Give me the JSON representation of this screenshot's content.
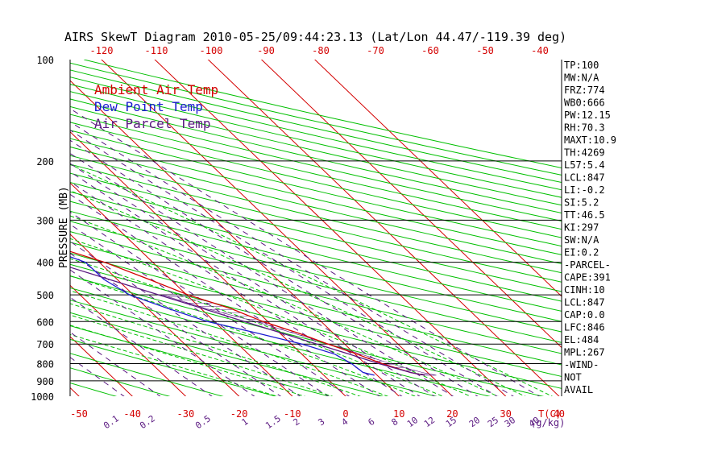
{
  "title": "AIRS SkewT Diagram 2010-05-25/09:44:23.13 (Lat/Lon 44.47/-119.39 deg)",
  "legend": [
    {
      "label": "Ambient Air Temp",
      "color": "#d40000"
    },
    {
      "label": "Dew Point Temp",
      "color": "#1c1cd0"
    },
    {
      "label": "Air Parcel Temp",
      "color": "#5a1880"
    }
  ],
  "indices": [
    "TP:100",
    "MW:N/A",
    "FRZ:774",
    "WB0:666",
    "PW:12.15",
    "RH:70.3",
    "MAXT:10.9",
    "TH:4269",
    "L57:5.4",
    "LCL:847",
    "LI:-0.2",
    "SI:5.2",
    "TT:46.5",
    "KI:297",
    "SW:N/A",
    "EI:0.2",
    "-PARCEL-",
    "CAPE:391",
    "CINH:10",
    "LCL:847",
    "CAP:0.0",
    "LFC:846",
    "EL:484",
    "MPL:267",
    "-WIND-",
    "NOT",
    "AVAIL"
  ],
  "chart_data": {
    "type": "line",
    "title": "AIRS SkewT Diagram 2010-05-25/09:44:23.13 (Lat/Lon 44.47/-119.39 deg)",
    "ylabel": "PRESSURE (MB)",
    "xlabel": "T(C)",
    "y_scale": "log",
    "ylim": [
      1000,
      100
    ],
    "pressure_ticks": [
      100,
      200,
      300,
      400,
      500,
      600,
      700,
      800,
      900,
      1000
    ],
    "bottom_temp_ticks": [
      -50,
      -40,
      -30,
      -20,
      -10,
      0,
      10,
      20,
      30,
      40
    ],
    "top_temp_ticks": [
      -120,
      -110,
      -100,
      -90,
      -80,
      -70,
      -60,
      -50,
      -40
    ],
    "mixing_ratio_labels": [
      "0.1",
      "0.2",
      "0.5",
      "1",
      "1.5",
      "2",
      "3",
      "4",
      "6",
      "8",
      "10",
      "12",
      "15",
      "20",
      "25",
      "30",
      "40"
    ],
    "mixing_ratio_unit": "(g/kg)",
    "mixing_ratio_values": [
      0.1,
      0.2,
      0.5,
      1,
      1.5,
      2,
      3,
      4,
      6,
      8,
      10,
      12,
      15,
      20,
      25,
      30,
      40
    ],
    "series": [
      {
        "name": "Ambient Air Temp",
        "color": "#d40000",
        "points": [
          [
            866,
            18.9
          ],
          [
            850,
            16.8
          ],
          [
            800,
            13.2
          ],
          [
            750,
            10.4
          ],
          [
            700,
            6.9
          ],
          [
            650,
            3.5
          ],
          [
            600,
            -0.9
          ],
          [
            550,
            -4.3
          ],
          [
            500,
            -9.7
          ],
          [
            450,
            -14.0
          ],
          [
            400,
            -19.0
          ],
          [
            350,
            -26.9
          ],
          [
            300,
            -38.6
          ],
          [
            250,
            -49.8
          ],
          [
            225,
            -53.8
          ],
          [
            200,
            -54.3
          ],
          [
            175,
            -56.4
          ],
          [
            150,
            -55.3
          ],
          [
            125,
            -58.8
          ],
          [
            100,
            -62.1
          ]
        ]
      },
      {
        "name": "Dew Point Temp",
        "color": "#1c1cd0",
        "points": [
          [
            866,
            9.5
          ],
          [
            850,
            7.9
          ],
          [
            800,
            7.5
          ],
          [
            750,
            6.2
          ],
          [
            700,
            2.0
          ],
          [
            650,
            -4.2
          ],
          [
            600,
            -11.3
          ],
          [
            550,
            -16.0
          ],
          [
            500,
            -20.7
          ],
          [
            450,
            -22.5
          ],
          [
            400,
            -22.6
          ],
          [
            350,
            -28.9
          ],
          [
            300,
            -39.4
          ],
          [
            250,
            -48.5
          ],
          [
            200,
            -59.5
          ],
          [
            150,
            -70.0
          ],
          [
            125,
            -78.0
          ],
          [
            100,
            -82.5
          ]
        ]
      },
      {
        "name": "Air Parcel Temp",
        "color": "#5a1880",
        "points": [
          [
            866,
            18.9
          ],
          [
            850,
            16.8
          ],
          [
            800,
            12.6
          ],
          [
            750,
            8.9
          ],
          [
            700,
            4.8
          ],
          [
            650,
            0.4
          ],
          [
            600,
            -4.4
          ],
          [
            550,
            -9.5
          ],
          [
            500,
            -15.2
          ],
          [
            450,
            -21.5
          ],
          [
            400,
            -28.5
          ],
          [
            350,
            -36.5
          ],
          [
            300,
            -45.8
          ],
          [
            250,
            -56.5
          ],
          [
            200,
            -69.5
          ],
          [
            150,
            -86.0
          ],
          [
            125,
            -96.5
          ],
          [
            100,
            -109.0
          ]
        ]
      }
    ],
    "colors": {
      "temperature_isotherms": "#d40000",
      "dry_adiabats": "#00c000",
      "moist_adiabats": "#00c000",
      "mixing_ratio_lines": "#5a1880",
      "cape_hatch": "#5a1880"
    }
  }
}
